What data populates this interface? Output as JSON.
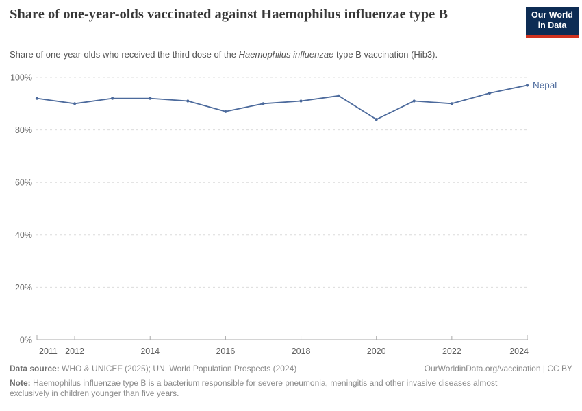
{
  "header": {
    "title": "Share of one-year-olds vaccinated against Haemophilus influenzae type B",
    "subtitle_prefix": "Share of one-year-olds who received the third dose of the ",
    "subtitle_italic": "Haemophilus influenzae",
    "subtitle_suffix": " type B vaccination (Hib3).",
    "logo_line1": "Our World",
    "logo_line2": "in Data"
  },
  "chart_data": {
    "type": "line",
    "title": "Share of one-year-olds vaccinated against Haemophilus influenzae type B",
    "x": [
      2011,
      2012,
      2013,
      2014,
      2015,
      2016,
      2017,
      2018,
      2019,
      2020,
      2021,
      2022,
      2023,
      2024
    ],
    "series": [
      {
        "name": "Nepal",
        "values": [
          92,
          90,
          92,
          92,
          91,
          87,
          90,
          91,
          93,
          84,
          91,
          90,
          94,
          97
        ]
      }
    ],
    "unit": "%",
    "ylim": [
      0,
      100
    ],
    "yticks": [
      0,
      20,
      40,
      60,
      80,
      100
    ],
    "ytick_labels": [
      "0%",
      "20%",
      "40%",
      "60%",
      "80%",
      "100%"
    ],
    "xticks": [
      2011,
      2012,
      2014,
      2016,
      2018,
      2020,
      2022,
      2024
    ],
    "grid": "horizontal-dashed",
    "legend": "line-end-label"
  },
  "footer": {
    "datasource_label": "Data source:",
    "datasource_text": " WHO & UNICEF (2025); UN, World Population Prospects (2024)",
    "link_text": "OurWorldinData.org/vaccination | CC BY",
    "note_label": "Note:",
    "note_text": " Haemophilus influenzae type B is a bacterium responsible for severe pneumonia, meningitis and other invasive diseases almost exclusively in children younger than five years."
  },
  "colors": {
    "line": "#4c6a9c",
    "grid": "#dcdcdc",
    "axis": "#a9a9a9",
    "ytick_text": "#6b6b6b",
    "xtick_text": "#5e5e5e",
    "logo_navy": "#0d2c54",
    "logo_red": "#d0321f"
  }
}
